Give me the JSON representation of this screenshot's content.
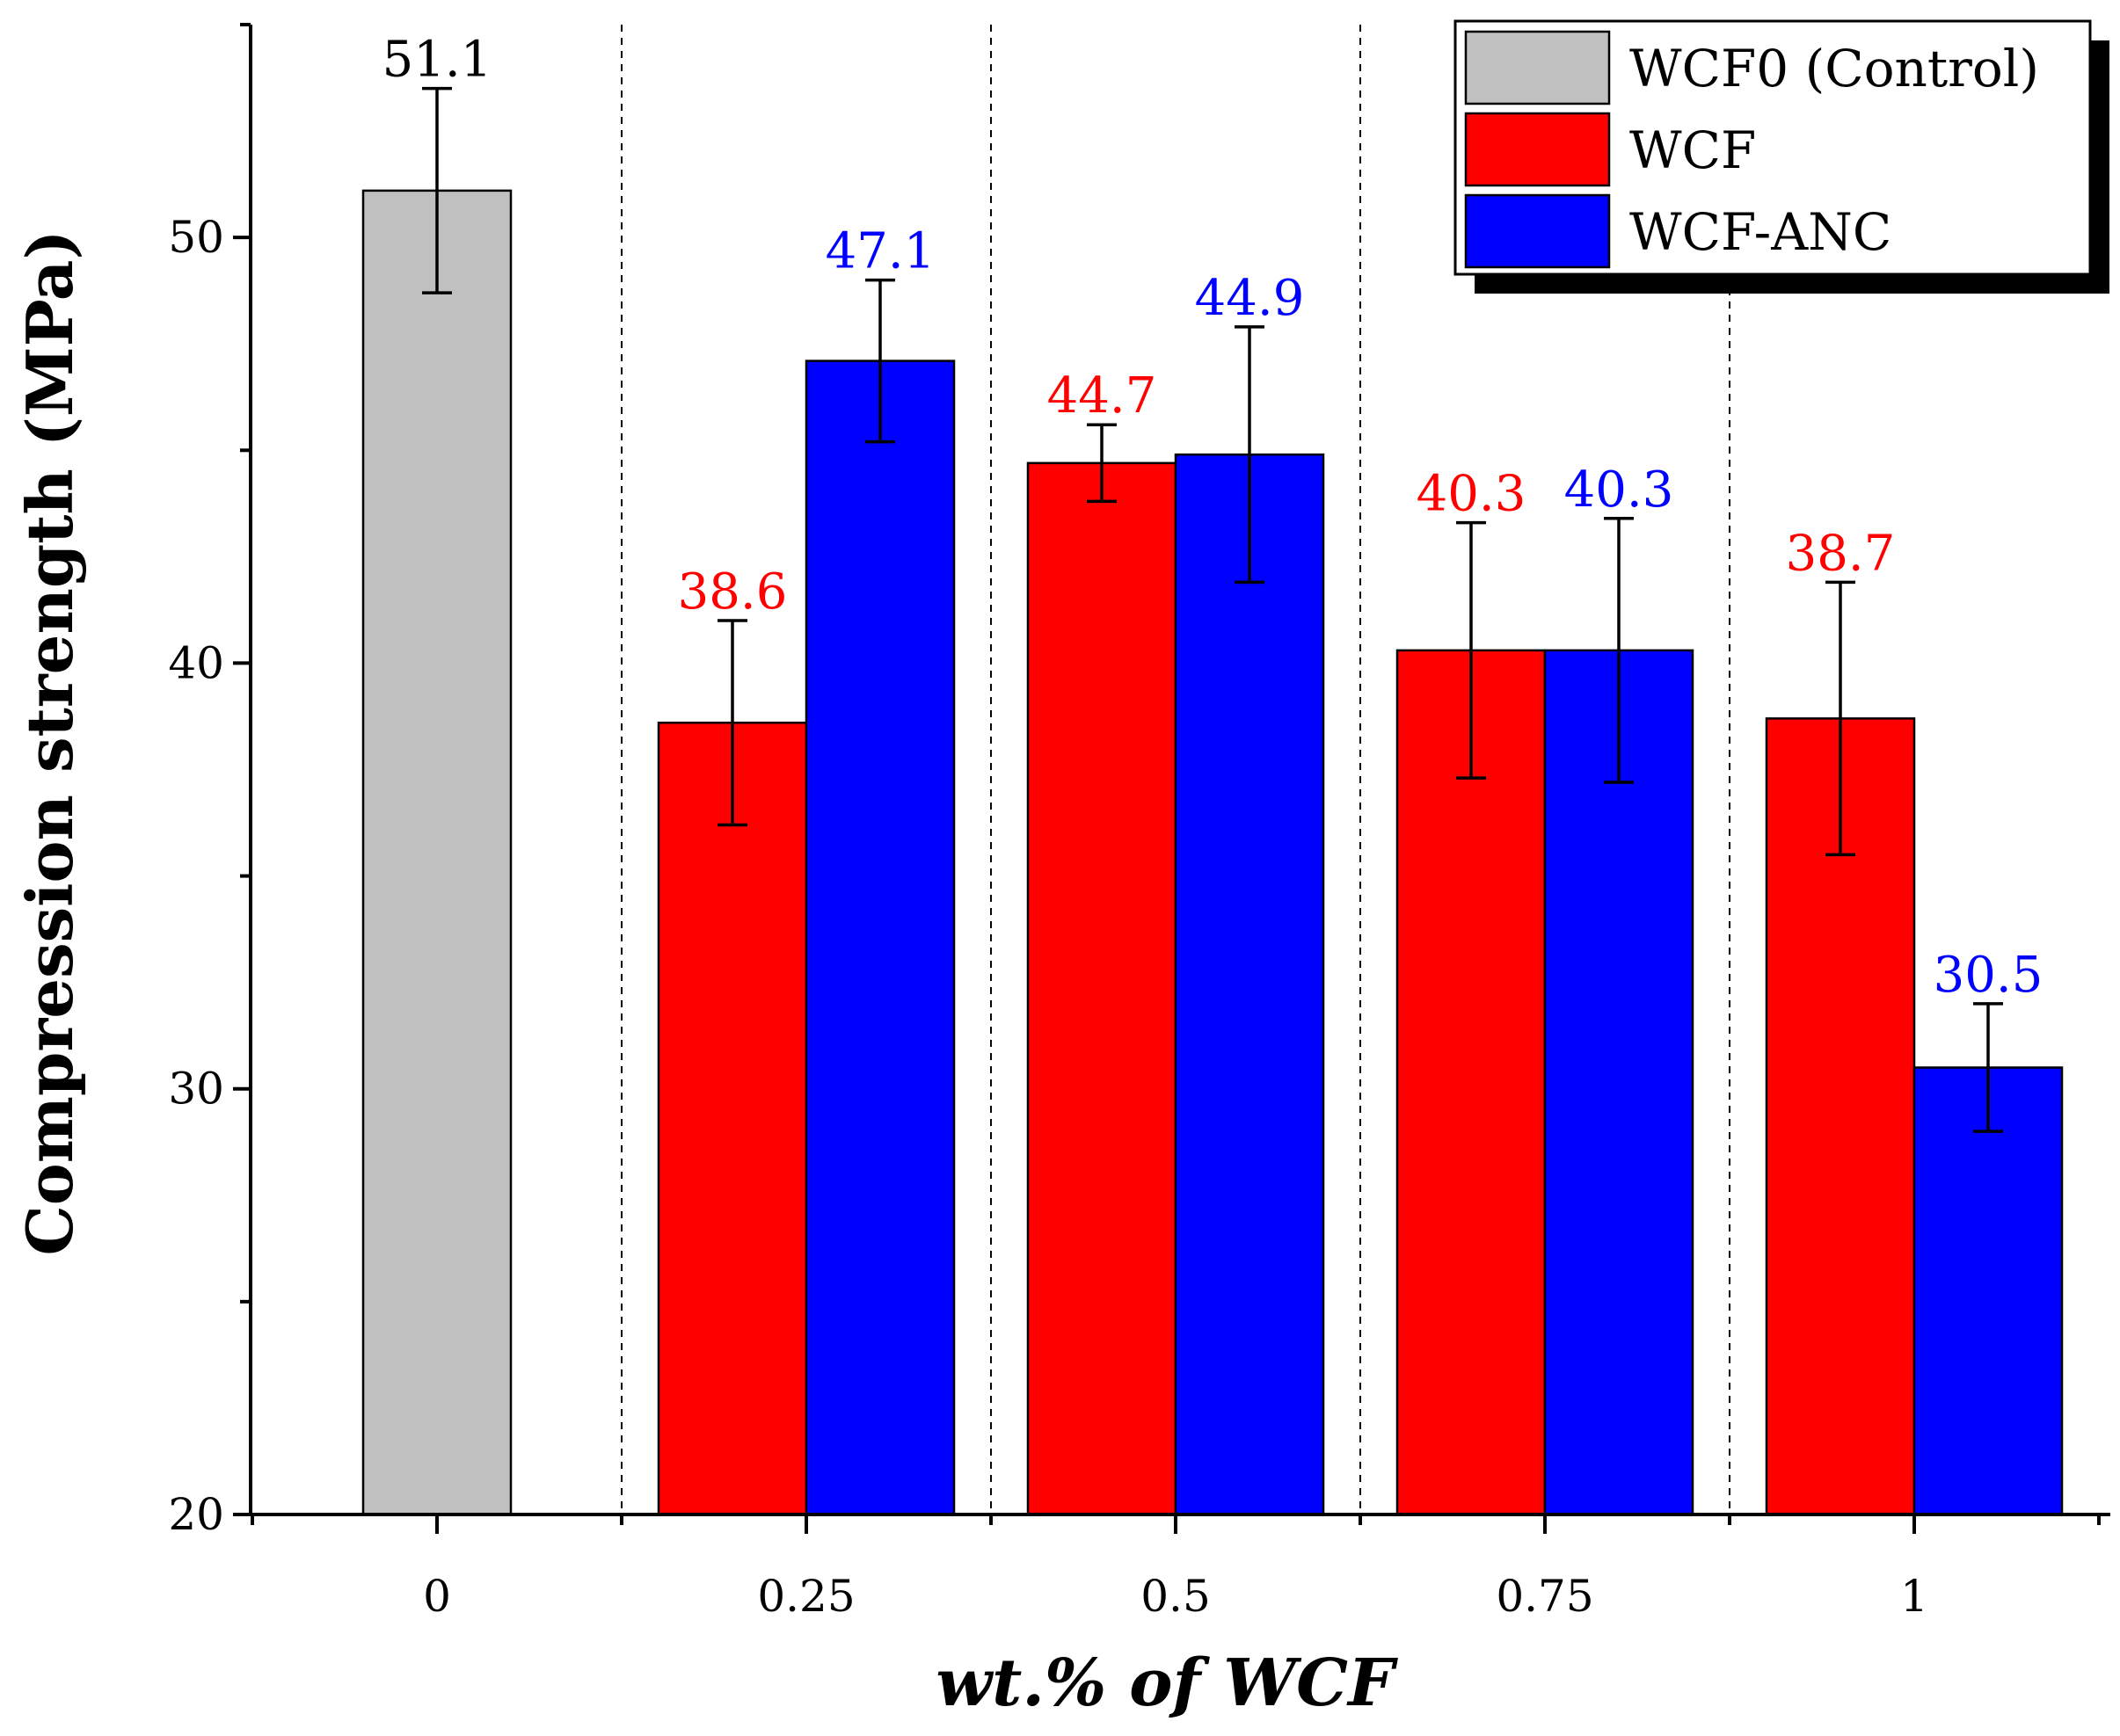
{
  "chart_data": {
    "type": "bar",
    "title": "",
    "xlabel": "wt.% of WCF",
    "ylabel": "Compression strength (MPa)",
    "ylim": [
      20,
      55
    ],
    "yticks": [
      20,
      30,
      40,
      50
    ],
    "categories": [
      "0",
      "0.25",
      "0.5",
      "0.75",
      "1"
    ],
    "series": [
      {
        "name": "WCF0 (Control)",
        "color": "#c0c0c0",
        "label_color": "#000000",
        "values": [
          51.1,
          null,
          null,
          null,
          null
        ],
        "errors": [
          2.4,
          null,
          null,
          null,
          null
        ],
        "labels": [
          "51.1",
          null,
          null,
          null,
          null
        ]
      },
      {
        "name": "WCF",
        "color": "#ff0000",
        "label_color": "#ff0000",
        "values": [
          null,
          38.6,
          44.7,
          40.3,
          38.7
        ],
        "errors": [
          null,
          2.4,
          0.9,
          3.0,
          3.2
        ],
        "labels": [
          null,
          "38.6",
          "44.7",
          "40.3",
          "38.7"
        ]
      },
      {
        "name": "WCF-ANC",
        "color": "#0000ff",
        "label_color": "#0000ff",
        "values": [
          null,
          47.1,
          44.9,
          40.3,
          30.5
        ],
        "errors": [
          null,
          1.9,
          3.0,
          3.1,
          1.5
        ],
        "labels": [
          null,
          "47.1",
          "44.9",
          "40.3",
          "30.5"
        ]
      }
    ],
    "legend": {
      "position": "top-right",
      "entries": [
        "WCF0 (Control)",
        "WCF",
        "WCF-ANC"
      ]
    },
    "grid": false,
    "group_separators": "dashed vertical lines between categories"
  }
}
